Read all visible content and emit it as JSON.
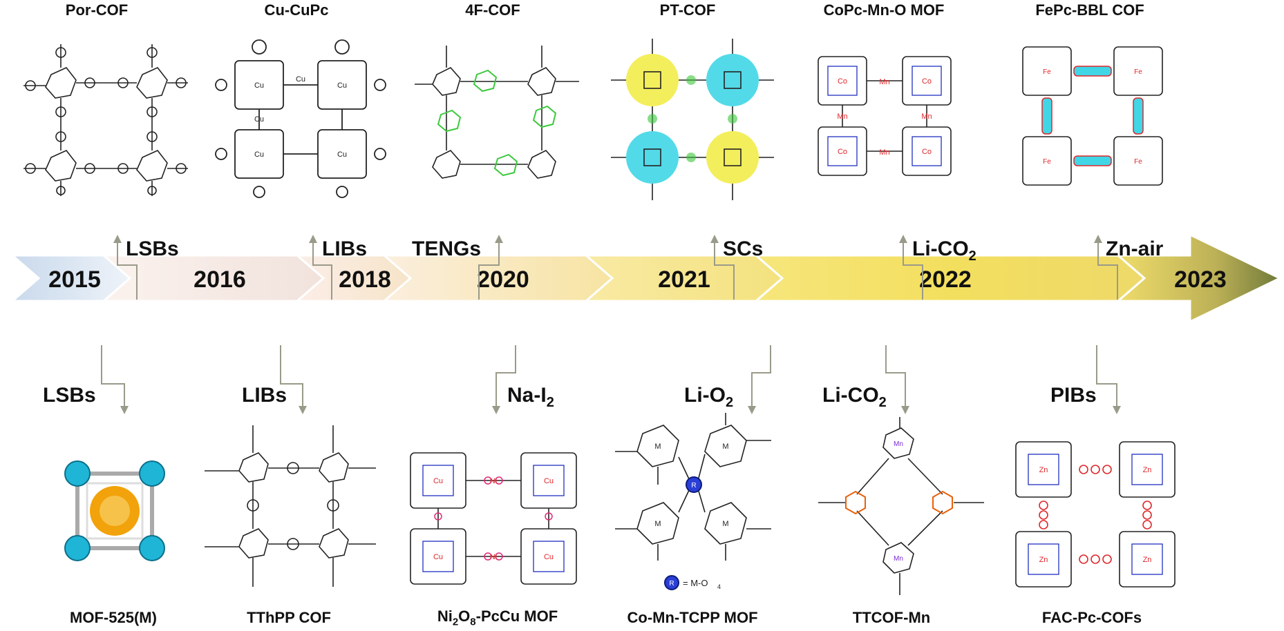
{
  "timeline": {
    "years": [
      "2015",
      "2016",
      "2018",
      "2020",
      "2021",
      "2022",
      "2023"
    ]
  },
  "top": [
    {
      "title": "Por-COF",
      "app": "LSBs"
    },
    {
      "title": "Cu-CuPc",
      "app": "LIBs"
    },
    {
      "title": "4F-COF",
      "app": "TENGs"
    },
    {
      "title": "PT-COF",
      "app": "SCs"
    },
    {
      "title": "CoPc-Mn-O MOF",
      "app_main": "Li-CO",
      "app_sub": "2"
    },
    {
      "title": "FePc-BBL COF",
      "app": "Zn-air"
    }
  ],
  "bottom": [
    {
      "title": "MOF-525(M)",
      "app": "LSBs"
    },
    {
      "title": "TThPP COF",
      "app": "LIBs"
    },
    {
      "title_a": "Ni",
      "title_a_sub": "2",
      "title_b": "O",
      "title_b_sub": "8",
      "title_c": "-PcCu MOF",
      "app_main": "Na-I",
      "app_sub": "2"
    },
    {
      "title": "Co-Mn-TCPP MOF",
      "app_main": "Li-O",
      "app_sub": "2",
      "legend_m": "M",
      "legend_eq": "= M-O",
      "legend_sub": "4"
    },
    {
      "title": "TTCOF-Mn",
      "app_main": "Li-CO",
      "app_sub": "2"
    },
    {
      "title": "FAC-Pc-COFs",
      "app": "PIBs"
    }
  ],
  "colors": {
    "arrow_2015": "#dbe6f2",
    "arrow_2016": "#f5e8e2",
    "arrow_2020": "#f7e9bf",
    "arrow_2022": "#f3e27a",
    "arrow_2023": "#b8ae58",
    "connector": "#9a9a8a",
    "metal_red": "#e0262a",
    "nitrogen_blue": "#1f2fbf",
    "highlight_cyan": "#40d6e6",
    "highlight_yellow": "#f2ec4a",
    "fluoro_green": "#3cc83c",
    "oxygen_magenta": "#e0287a",
    "sulfur_orange": "#e8600a",
    "mof_gold": "#f2a20a",
    "mof_cluster": "#1fb5d6"
  }
}
